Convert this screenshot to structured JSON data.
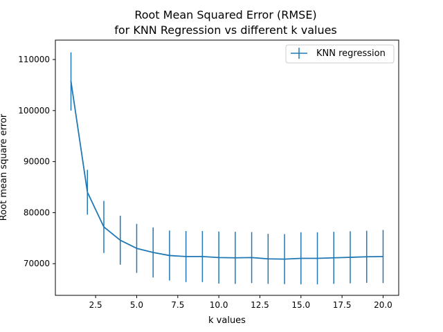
{
  "chart_data": {
    "type": "line",
    "title_line1": "Root Mean Squared Error (RMSE)",
    "title_line2": "for KNN Regression vs different k values",
    "xlabel": "k values",
    "ylabel": "Root mean square error",
    "xlim": [
      0.05,
      20.95
    ],
    "ylim": [
      63800,
      113800
    ],
    "x_ticks": [
      2.5,
      5.0,
      7.5,
      10.0,
      12.5,
      15.0,
      17.5,
      20.0
    ],
    "x_tick_labels": [
      "2.5",
      "5.0",
      "7.5",
      "10.0",
      "12.5",
      "15.0",
      "17.5",
      "20.0"
    ],
    "y_ticks": [
      70000,
      80000,
      90000,
      100000,
      110000
    ],
    "y_tick_labels": [
      "70000",
      "80000",
      "90000",
      "100000",
      "110000"
    ],
    "grid": false,
    "legend_position": "top-right",
    "series": [
      {
        "name": "KNN regression",
        "color": "#1f77b4",
        "x": [
          1,
          2,
          3,
          4,
          5,
          6,
          7,
          8,
          9,
          10,
          11,
          12,
          13,
          14,
          15,
          16,
          17,
          18,
          19,
          20
        ],
        "y": [
          105700,
          84000,
          77200,
          74600,
          73000,
          72200,
          71600,
          71400,
          71400,
          71200,
          71150,
          71200,
          70950,
          70900,
          71050,
          71050,
          71150,
          71250,
          71350,
          71400
        ],
        "error": [
          5700,
          4400,
          5100,
          4800,
          4800,
          4900,
          4900,
          5000,
          5000,
          5100,
          5100,
          5000,
          4900,
          4900,
          5100,
          5100,
          5100,
          5100,
          5100,
          5200
        ]
      }
    ]
  }
}
